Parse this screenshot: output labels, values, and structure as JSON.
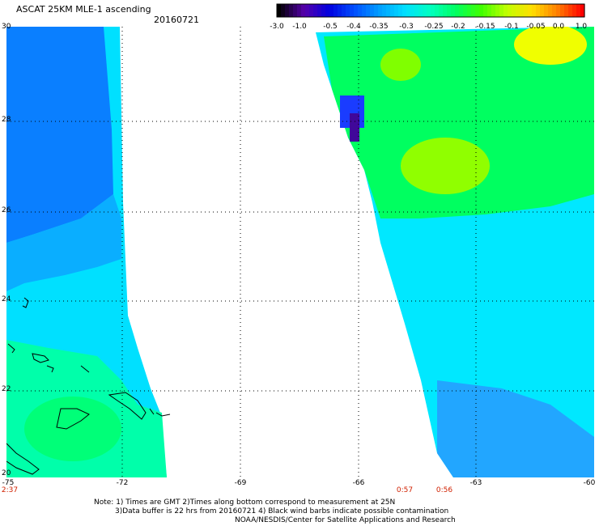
{
  "title": "ASCAT 25KM MLE-1 ascending",
  "date": "20160721",
  "colorbar": {
    "labels": [
      "-3.0",
      "-1.0",
      "-0.5",
      "-0.4",
      "-0.35",
      "-0.3",
      "-0.25",
      "-0.2",
      "-0.15",
      "-0.1",
      "-0.05",
      "0.0",
      "1.0"
    ],
    "colors": [
      "#000000",
      "#5500aa",
      "#0000e0",
      "#0050ff",
      "#00a0ff",
      "#00e0ff",
      "#00ffc0",
      "#00ff60",
      "#40ff00",
      "#c0ff00",
      "#ffe000",
      "#ff8000",
      "#ff0000"
    ]
  },
  "map": {
    "lat_labels": [
      "30",
      "28",
      "26",
      "24",
      "22",
      "20"
    ],
    "lon_labels": [
      "-75",
      "-72",
      "-69",
      "-66",
      "-63",
      "-60"
    ],
    "time_labels": [
      "2:37",
      "0:57",
      "0:56"
    ]
  },
  "notes": {
    "line1": "Note: 1) Times are GMT 2)Times along bottom correspond to measurement at 25N",
    "line2": "3)Data buffer is 22 hrs from 20160721 4) Black wind barbs indicate possible contamination",
    "line3": "NOAA/NESDIS/Center for Satellite Applications and Research"
  }
}
